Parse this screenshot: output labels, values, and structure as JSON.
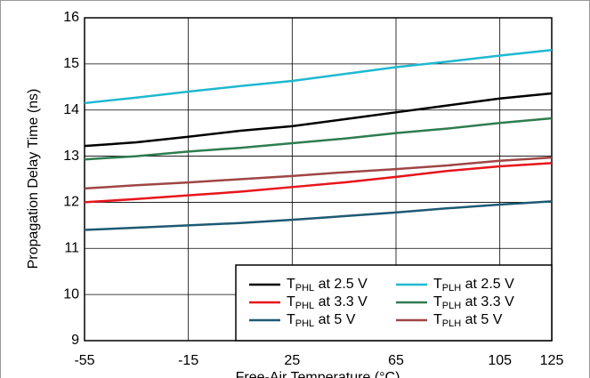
{
  "chart_data": {
    "type": "line",
    "xlabel": "Free-Air Temperature (°C)",
    "ylabel": "Propagation Delay Time (ns)",
    "x": [
      -55,
      -35,
      -15,
      5,
      25,
      45,
      65,
      85,
      105,
      125
    ],
    "series": [
      {
        "name": "TPHL at 2.5 V",
        "color": "#000000",
        "values": [
          13.22,
          13.3,
          13.42,
          13.55,
          13.65,
          13.8,
          13.95,
          14.1,
          14.25,
          14.36
        ]
      },
      {
        "name": "TPLH at 2.5 V",
        "color": "#1fb8d0",
        "values": [
          14.15,
          14.27,
          14.4,
          14.52,
          14.63,
          14.78,
          14.93,
          15.05,
          15.18,
          15.3
        ]
      },
      {
        "name": "TPHL at 3.3 V",
        "color": "#e8141b",
        "values": [
          12.0,
          12.07,
          12.15,
          12.23,
          12.33,
          12.43,
          12.55,
          12.68,
          12.78,
          12.85
        ]
      },
      {
        "name": "TPLH at 3.3 V",
        "color": "#2e7d4f",
        "values": [
          12.93,
          13.0,
          13.1,
          13.18,
          13.28,
          13.38,
          13.5,
          13.6,
          13.72,
          13.82
        ]
      },
      {
        "name": "TPHL at 5 V",
        "color": "#1d5a73",
        "values": [
          11.4,
          11.45,
          11.5,
          11.55,
          11.62,
          11.7,
          11.78,
          11.87,
          11.95,
          12.02
        ]
      },
      {
        "name": "TPLH at 5 V",
        "color": "#a04545",
        "values": [
          12.3,
          12.37,
          12.43,
          12.5,
          12.57,
          12.65,
          12.72,
          12.8,
          12.9,
          12.97
        ]
      }
    ],
    "xlim": [
      -55,
      125
    ],
    "xticks": [
      -55,
      -15,
      25,
      65,
      105,
      125
    ],
    "ylim": [
      9,
      16
    ],
    "yticks": [
      9,
      10,
      11,
      12,
      13,
      14,
      15,
      16
    ],
    "grid": true,
    "legend": "lower right"
  }
}
